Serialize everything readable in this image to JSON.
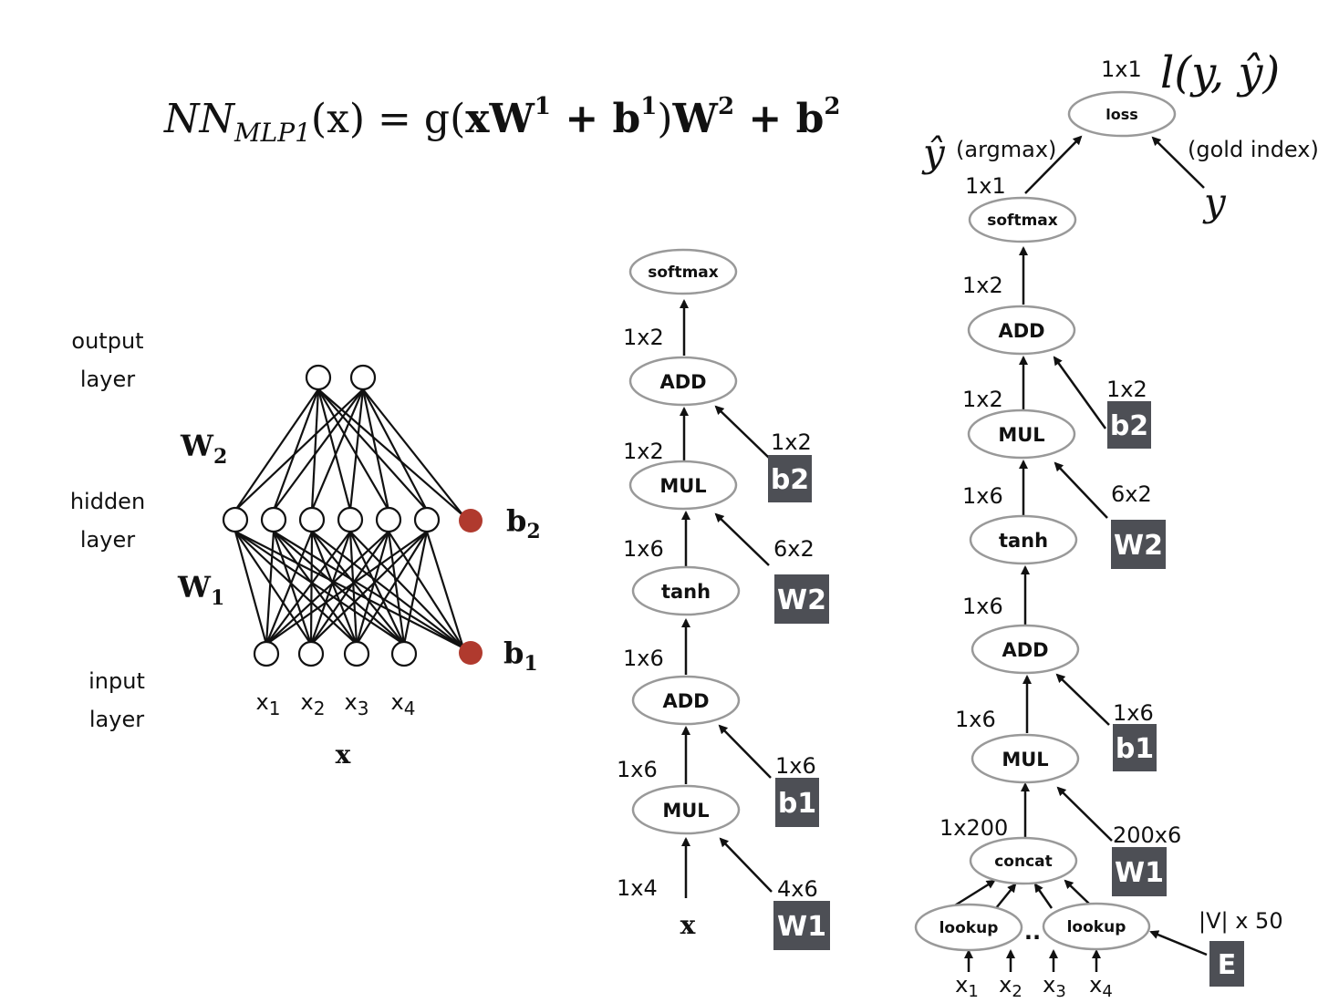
{
  "formula": {
    "lhs": "NN",
    "lhs_sub": "MLP1",
    "arg": "(x) = g(",
    "x": "x",
    "W1": "W",
    "W1_sup": "1",
    "plus1": " + ",
    "b1": "b",
    "b1_sup": "1",
    "close": ")",
    "W2": "W",
    "W2_sup": "2",
    "plus2": " + ",
    "b2": "b",
    "b2_sup": "2"
  },
  "network": {
    "output_layer": [
      "output",
      "layer"
    ],
    "hidden_layer": [
      "hidden",
      "layer"
    ],
    "input_layer": [
      "input",
      "layer"
    ],
    "w2": "W",
    "w2_sub": "2",
    "w1": "W",
    "w1_sub": "1",
    "b2": "b",
    "b2_sub": "2",
    "b1": "b",
    "b1_sub": "1",
    "inputs": [
      {
        "main": "x",
        "sub": "1"
      },
      {
        "main": "x",
        "sub": "2"
      },
      {
        "main": "x",
        "sub": "3"
      },
      {
        "main": "x",
        "sub": "4"
      }
    ],
    "x_label": "x",
    "bias_color": "#b03a2e"
  },
  "graph1": {
    "nodes": {
      "softmax": "softmax",
      "add2": "ADD",
      "mul2": "MUL",
      "tanh": "tanh",
      "add1": "ADD",
      "mul1": "MUL"
    },
    "dims": {
      "softmax_in": "1x2",
      "add2_in": "1x2",
      "b2": "1x2",
      "mul2_in": "1x6",
      "w2": "6x2",
      "tanh_in": "1x6",
      "add1_in": "1x6",
      "b1": "1x6",
      "mul1_in": "1x4",
      "w1": "4x6"
    },
    "params": {
      "b2": "b2",
      "w2": "W2",
      "b1": "b1",
      "w1": "W1"
    },
    "x_label": "x"
  },
  "graph2": {
    "loss_dim": "1x1",
    "loss_fn": "l(y, ŷ)",
    "nodes": {
      "loss": "loss",
      "softmax": "softmax",
      "add2": "ADD",
      "mul2": "MUL",
      "tanh": "tanh",
      "add1": "ADD",
      "mul1": "MUL",
      "concat": "concat",
      "lookup_a": "lookup",
      "lookup_b": "lookup"
    },
    "yhat": "ŷ",
    "argmax": "(argmax)",
    "gold": "(gold index)",
    "y": "y",
    "dots": "..",
    "dims": {
      "softmax_out": "1x1",
      "softmax_in": "1x2",
      "add2_in": "1x2",
      "b2": "1x2",
      "mul2_in": "1x6",
      "w2": "6x2",
      "tanh_in": "1x6",
      "add1_in": "1x6",
      "b1": "1x6",
      "mul1_in": "1x200",
      "w1": "200x6",
      "e": "|V| x 50"
    },
    "params": {
      "b2": "b2",
      "w2": "W2",
      "b1": "b1",
      "w1": "W1",
      "e": "E"
    },
    "inputs": [
      {
        "main": "x",
        "sub": "1"
      },
      {
        "main": "x",
        "sub": "2"
      },
      {
        "main": "x",
        "sub": "3"
      },
      {
        "main": "x",
        "sub": "4"
      }
    ]
  },
  "colors": {
    "param_box": "#4d4f55",
    "node_stroke": "#999999",
    "line": "#111111"
  }
}
